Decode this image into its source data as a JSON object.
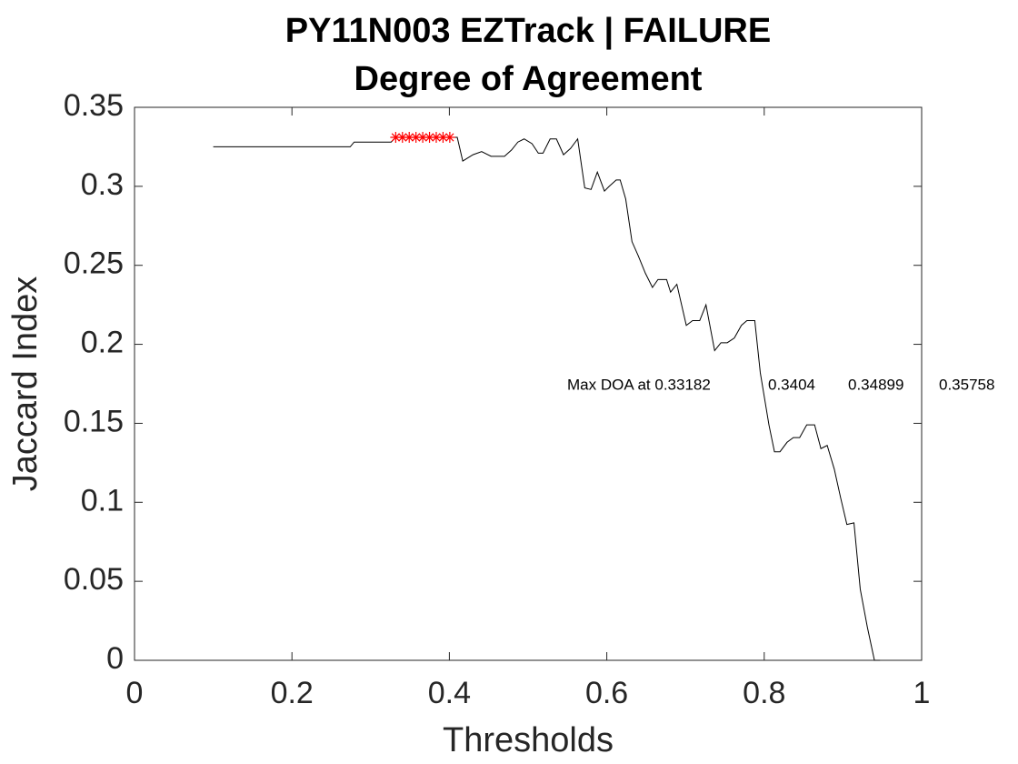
{
  "chart_data": {
    "type": "line",
    "title": "PY11N003 EZTrack | FAILURE",
    "subtitle": "Degree of Agreement",
    "x_label": "Thresholds",
    "y_label": "Jaccard Index",
    "xlim": [
      0,
      1
    ],
    "xticks": [
      0,
      0.2,
      0.4,
      0.6,
      0.8,
      1
    ],
    "ylim": [
      0,
      0.35
    ],
    "yticks": [
      0,
      0.05,
      0.1,
      0.15,
      0.2,
      0.25,
      0.3,
      0.35
    ],
    "annotations": [
      "Max DOA at 0.33182",
      "0.3404",
      "0.34899",
      "0.35758"
    ],
    "series": [
      {
        "color": "#000000",
        "marker": "none",
        "x": [
          0.1,
          0.274,
          0.279,
          0.326,
          0.332,
          0.41,
          0.417,
          0.43,
          0.441,
          0.453,
          0.47,
          0.479,
          0.487,
          0.495,
          0.505,
          0.513,
          0.519,
          0.528,
          0.536,
          0.545,
          0.554,
          0.563,
          0.572,
          0.58,
          0.588,
          0.597,
          0.603,
          0.612,
          0.617,
          0.624,
          0.632,
          0.64,
          0.649,
          0.658,
          0.665,
          0.676,
          0.681,
          0.689,
          0.701,
          0.709,
          0.718,
          0.726,
          0.737,
          0.745,
          0.753,
          0.762,
          0.771,
          0.778,
          0.788,
          0.795,
          0.806,
          0.813,
          0.82,
          0.829,
          0.837,
          0.845,
          0.854,
          0.864,
          0.872,
          0.88,
          0.889,
          0.897,
          0.905,
          0.914,
          0.922,
          0.931,
          0.94,
          0.947
        ],
        "values": [
          0.325,
          0.325,
          0.328,
          0.328,
          0.331,
          0.331,
          0.316,
          0.32,
          0.322,
          0.319,
          0.319,
          0.323,
          0.328,
          0.33,
          0.327,
          0.321,
          0.321,
          0.33,
          0.33,
          0.32,
          0.324,
          0.33,
          0.299,
          0.298,
          0.309,
          0.297,
          0.3,
          0.304,
          0.304,
          0.292,
          0.265,
          0.256,
          0.245,
          0.236,
          0.241,
          0.241,
          0.233,
          0.238,
          0.212,
          0.215,
          0.215,
          0.225,
          0.196,
          0.201,
          0.201,
          0.204,
          0.212,
          0.215,
          0.215,
          0.182,
          0.149,
          0.132,
          0.132,
          0.138,
          0.141,
          0.141,
          0.149,
          0.149,
          0.134,
          0.136,
          0.121,
          0.103,
          0.086,
          0.087,
          0.045,
          0.021,
          0,
          0
        ]
      },
      {
        "color": "#ff0000",
        "marker": "*",
        "x": [
          0.33182,
          0.3404,
          0.34899,
          0.35758,
          0.36617,
          0.37476,
          0.38335,
          0.39194,
          0.40054
        ],
        "values": [
          0.331,
          0.331,
          0.331,
          0.331,
          0.331,
          0.331,
          0.331,
          0.331,
          0.331
        ]
      }
    ]
  }
}
